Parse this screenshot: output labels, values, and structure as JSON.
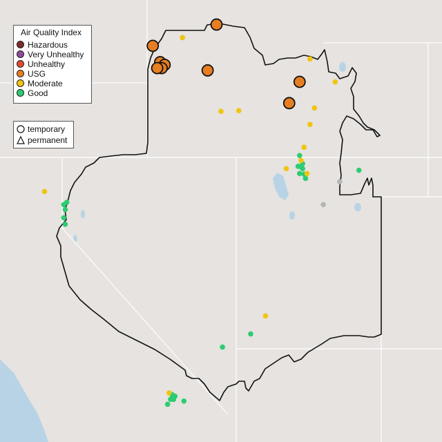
{
  "legend": {
    "title": "Air Quality Index",
    "categories": [
      {
        "label": "Hazardous",
        "color": "#7e2b2e"
      },
      {
        "label": "Very Unhealthy",
        "color": "#8e4a9e"
      },
      {
        "label": "Unhealthy",
        "color": "#e34a33"
      },
      {
        "label": "USG",
        "color": "#e67e22"
      },
      {
        "label": "Moderate",
        "color": "#f1c40f"
      },
      {
        "label": "Good",
        "color": "#2ecc71"
      }
    ],
    "monitor_types": [
      {
        "label": "temporary",
        "icon": "circle-icon"
      },
      {
        "label": "permanent",
        "icon": "triangle-icon"
      }
    ]
  },
  "colors": {
    "land": "#e6e3e0",
    "water": "#b9d3e6",
    "boundary": "#111111",
    "state_lines": "#ffffff",
    "no_data": "#b5b5b5"
  },
  "monitors": [
    {
      "category": "USG",
      "type": "temporary",
      "lon": -114.7,
      "lat": 48.35
    },
    {
      "category": "USG",
      "type": "temporary",
      "lon": -116.85,
      "lat": 47.7
    },
    {
      "category": "USG",
      "type": "temporary",
      "lon": -116.6,
      "lat": 47.2
    },
    {
      "category": "USG",
      "type": "temporary",
      "lon": -116.45,
      "lat": 47.12
    },
    {
      "category": "USG",
      "type": "temporary",
      "lon": -116.55,
      "lat": 47.02
    },
    {
      "category": "USG",
      "type": "temporary",
      "lon": -116.7,
      "lat": 47.02
    },
    {
      "category": "USG",
      "type": "temporary",
      "lon": -115.0,
      "lat": 46.95
    },
    {
      "category": "USG",
      "type": "temporary",
      "lon": -111.9,
      "lat": 46.6
    },
    {
      "category": "USG",
      "type": "temporary",
      "lon": -112.25,
      "lat": 45.95
    },
    {
      "category": "Moderate",
      "type": "temporary",
      "lon": -115.85,
      "lat": 47.95
    },
    {
      "category": "Moderate",
      "type": "temporary",
      "lon": -111.55,
      "lat": 47.3
    },
    {
      "category": "Moderate",
      "type": "temporary",
      "lon": -110.7,
      "lat": 46.6
    },
    {
      "category": "Moderate",
      "type": "temporary",
      "lon": -111.4,
      "lat": 45.8
    },
    {
      "category": "Moderate",
      "type": "temporary",
      "lon": -114.55,
      "lat": 45.7
    },
    {
      "category": "Moderate",
      "type": "temporary",
      "lon": -113.95,
      "lat": 45.72
    },
    {
      "category": "Moderate",
      "type": "temporary",
      "lon": -111.55,
      "lat": 45.3
    },
    {
      "category": "Moderate",
      "type": "temporary",
      "lon": -111.75,
      "lat": 44.6
    },
    {
      "category": "Moderate",
      "type": "temporary",
      "lon": -111.85,
      "lat": 44.2
    },
    {
      "category": "Moderate",
      "type": "temporary",
      "lon": -112.35,
      "lat": 43.95
    },
    {
      "category": "Moderate",
      "type": "temporary",
      "lon": -111.65,
      "lat": 43.8
    },
    {
      "category": "Moderate",
      "type": "temporary",
      "lon": -120.5,
      "lat": 43.25
    },
    {
      "category": "Moderate",
      "type": "temporary",
      "lon": -113.05,
      "lat": 39.45
    },
    {
      "category": "Moderate",
      "type": "temporary",
      "lon": -116.3,
      "lat": 37.1
    },
    {
      "category": "Good",
      "type": "temporary",
      "lon": -111.9,
      "lat": 44.35
    },
    {
      "category": "Good",
      "type": "temporary",
      "lon": -111.8,
      "lat": 44.1
    },
    {
      "category": "Good",
      "type": "temporary",
      "lon": -111.85,
      "lat": 44.0
    },
    {
      "category": "Good",
      "type": "temporary",
      "lon": -111.95,
      "lat": 44.02
    },
    {
      "category": "Good",
      "type": "temporary",
      "lon": -111.8,
      "lat": 43.95
    },
    {
      "category": "Good",
      "type": "temporary",
      "lon": -111.75,
      "lat": 43.78
    },
    {
      "category": "Good",
      "type": "temporary",
      "lon": -111.9,
      "lat": 43.8
    },
    {
      "category": "Good",
      "type": "temporary",
      "lon": -111.7,
      "lat": 43.65
    },
    {
      "category": "Good",
      "type": "temporary",
      "lon": -109.9,
      "lat": 43.9
    },
    {
      "category": "Good",
      "type": "temporary",
      "lon": -119.75,
      "lat": 42.92
    },
    {
      "category": "Good",
      "type": "temporary",
      "lon": -119.85,
      "lat": 42.85
    },
    {
      "category": "Good",
      "type": "temporary",
      "lon": -119.8,
      "lat": 42.7
    },
    {
      "category": "Good",
      "type": "temporary",
      "lon": -119.85,
      "lat": 42.45
    },
    {
      "category": "Good",
      "type": "temporary",
      "lon": -119.8,
      "lat": 42.25
    },
    {
      "category": "Good",
      "type": "temporary",
      "lon": -113.55,
      "lat": 38.9
    },
    {
      "category": "Good",
      "type": "temporary",
      "lon": -114.5,
      "lat": 38.5
    },
    {
      "category": "Good",
      "type": "temporary",
      "lon": -116.2,
      "lat": 37.05
    },
    {
      "category": "Good",
      "type": "temporary",
      "lon": -116.1,
      "lat": 37.0
    },
    {
      "category": "Good",
      "type": "temporary",
      "lon": -116.2,
      "lat": 36.95
    },
    {
      "category": "Good",
      "type": "temporary",
      "lon": -116.15,
      "lat": 36.9
    },
    {
      "category": "Good",
      "type": "temporary",
      "lon": -116.25,
      "lat": 36.9
    },
    {
      "category": "Good",
      "type": "temporary",
      "lon": -115.8,
      "lat": 36.85
    },
    {
      "category": "Good",
      "type": "temporary",
      "lon": -116.35,
      "lat": 36.75
    },
    {
      "category": "No data",
      "type": "temporary",
      "lon": -110.55,
      "lat": 43.55
    },
    {
      "category": "No data",
      "type": "temporary",
      "lon": -111.1,
      "lat": 42.85
    }
  ]
}
